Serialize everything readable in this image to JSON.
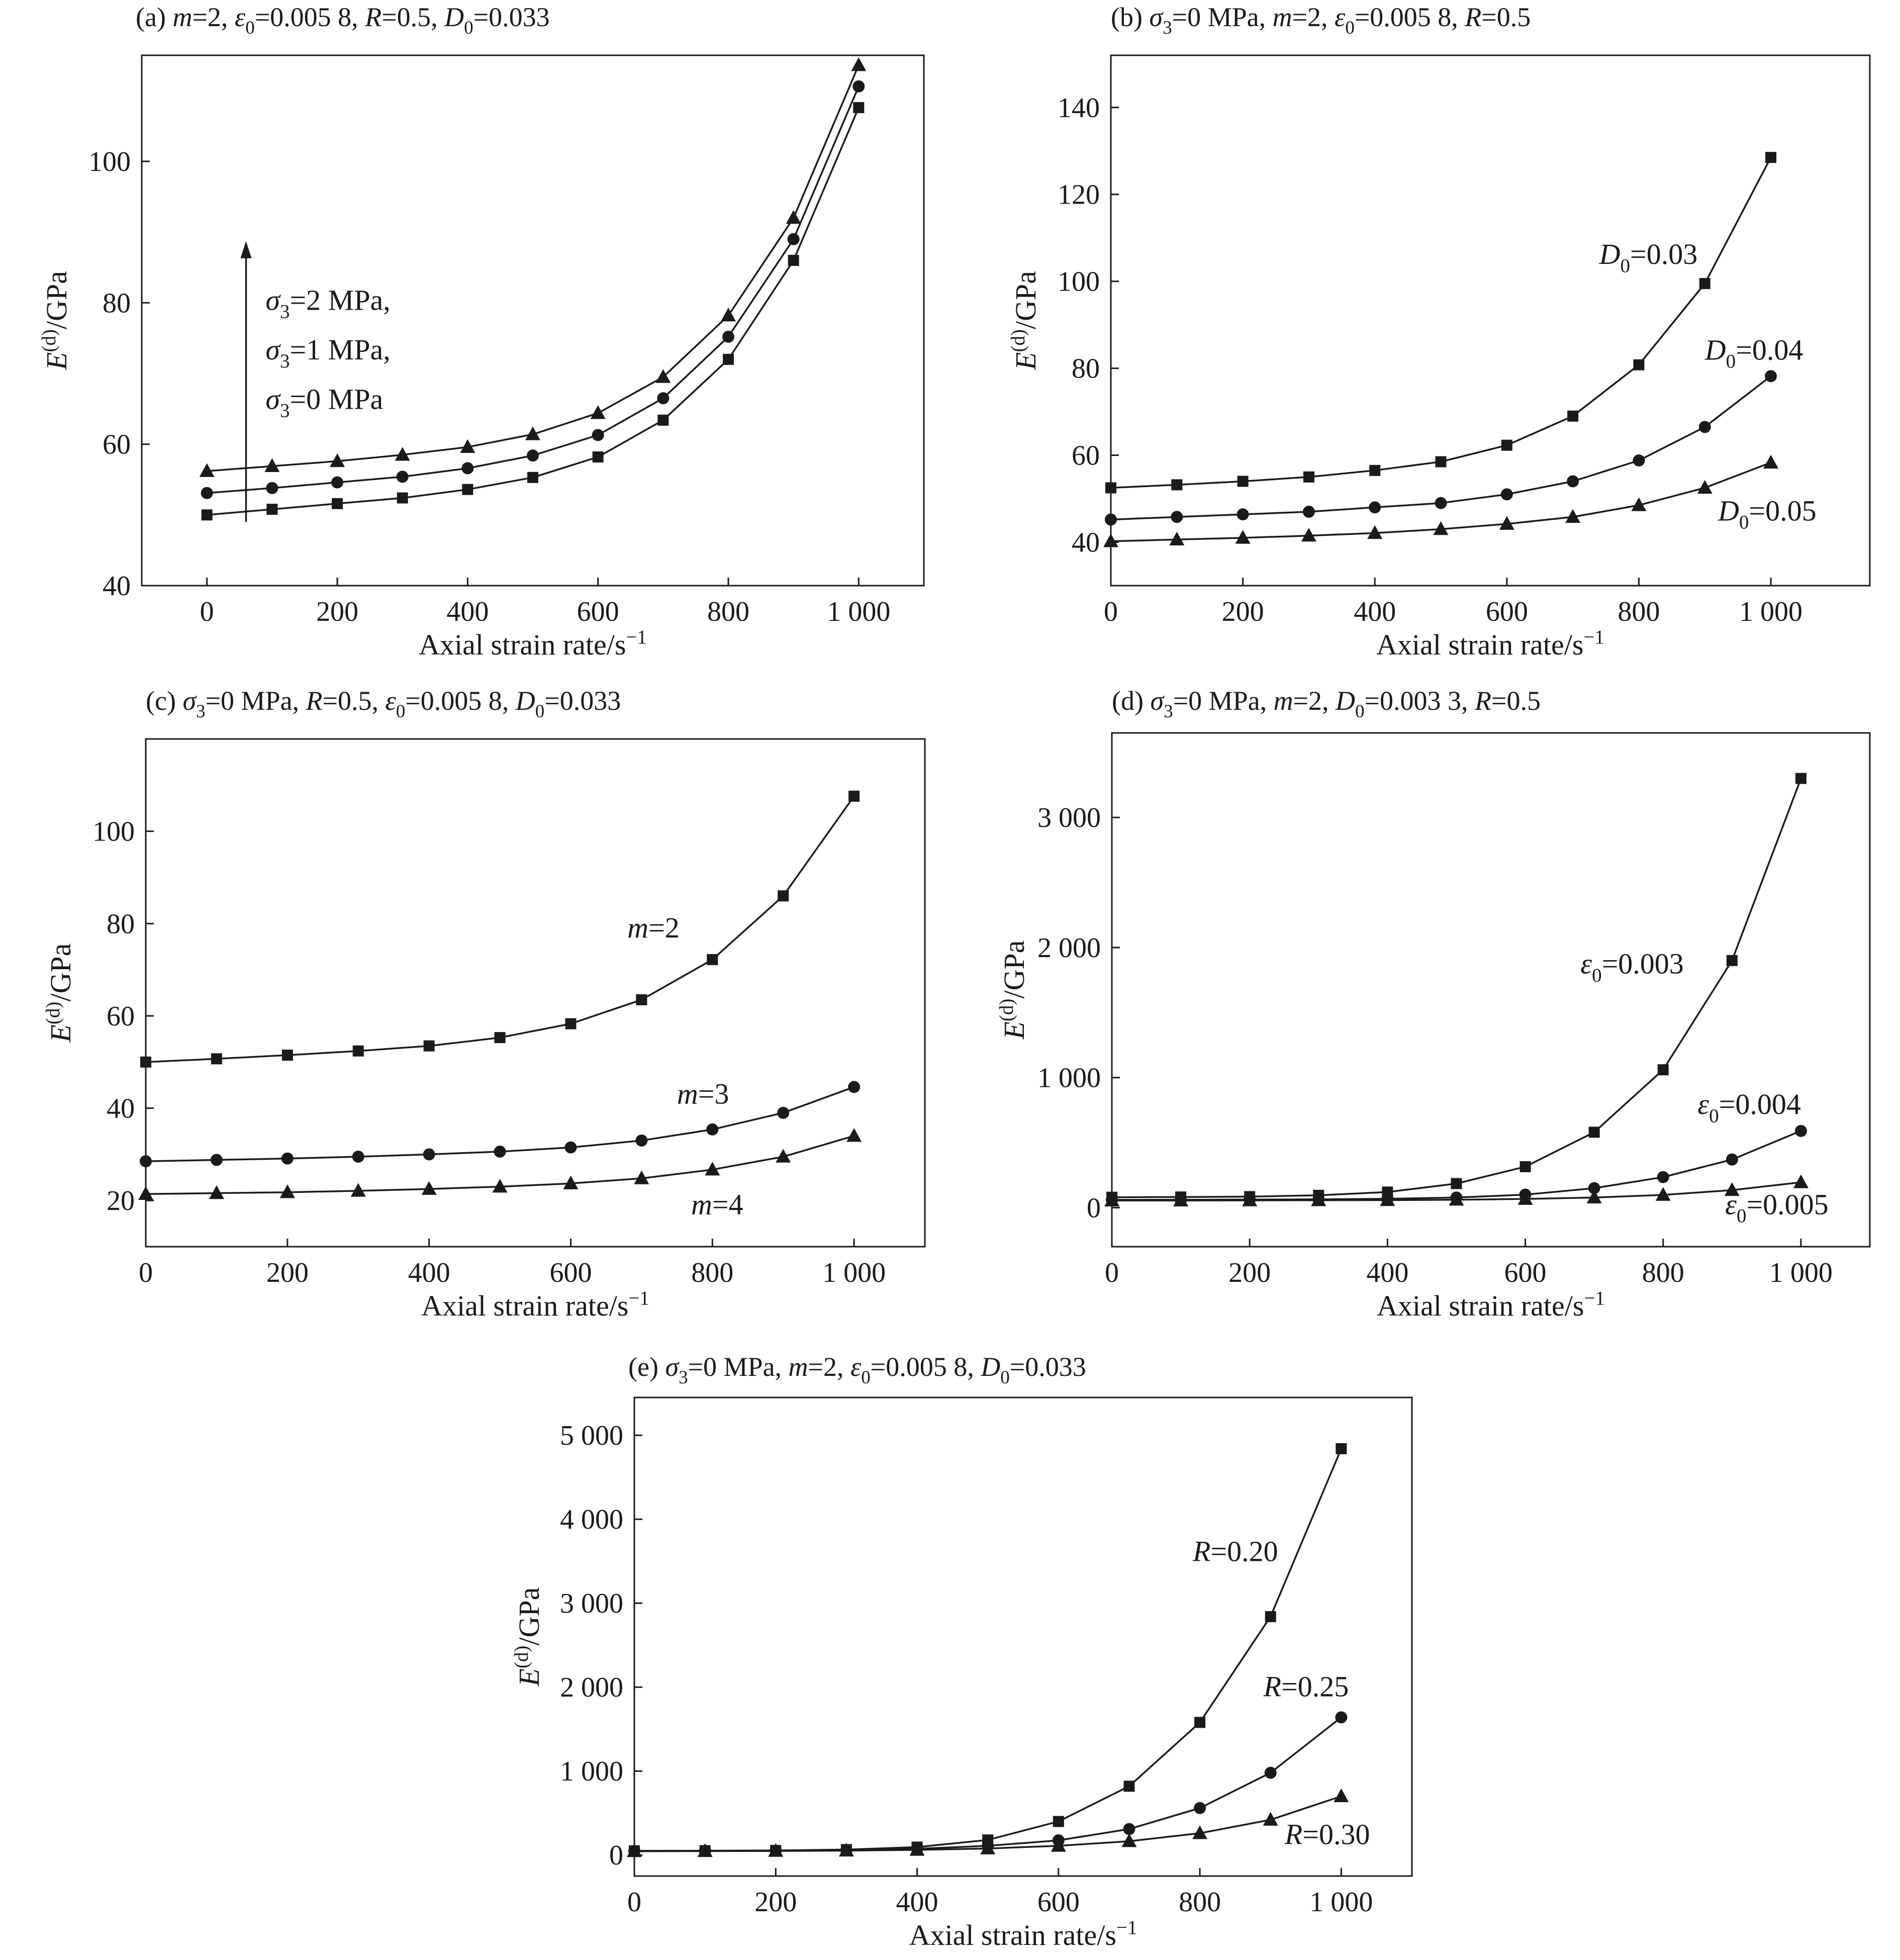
{
  "chart_data": [
    {
      "type": "line",
      "panel": "a",
      "title": "(a) m=2, ε0=0.005 8, R=0.5, D0=0.033",
      "xlabel": "Axial strain rate/s⁻¹",
      "ylabel": "E(d)/GPa",
      "xlim": [
        -100,
        1100
      ],
      "ylim": [
        40,
        115
      ],
      "xticks": [
        0,
        200,
        400,
        600,
        800,
        1000
      ],
      "xtick_labels": [
        "0",
        "200",
        "400",
        "600",
        "800",
        "1 000"
      ],
      "yticks": [
        40,
        60,
        80,
        100
      ],
      "ytick_labels": [
        "40",
        "60",
        "80",
        "100"
      ],
      "x": [
        0,
        100,
        200,
        300,
        400,
        500,
        600,
        700,
        800,
        900,
        1000
      ],
      "series": [
        {
          "marker": "square",
          "values": [
            50.0,
            50.8,
            51.6,
            52.4,
            53.6,
            55.3,
            58.2,
            63.4,
            72.0,
            86.0,
            107.6
          ]
        },
        {
          "marker": "circle",
          "values": [
            53.1,
            53.8,
            54.6,
            55.4,
            56.6,
            58.4,
            61.3,
            66.5,
            75.2,
            89.0,
            110.6
          ]
        },
        {
          "marker": "triangle",
          "values": [
            56.2,
            56.9,
            57.6,
            58.5,
            59.6,
            61.4,
            64.4,
            69.5,
            78.2,
            92.0,
            113.6
          ]
        }
      ],
      "annotations": [
        {
          "text": "σ3=2 MPa,",
          "x": 90,
          "y": 79
        },
        {
          "text": "σ3=1 MPa,",
          "x": 90,
          "y": 72
        },
        {
          "text": "σ3=0 MPa",
          "x": 90,
          "y": 65
        }
      ],
      "arrow": {
        "x": 60,
        "y_from": 49,
        "y_to": 88
      }
    },
    {
      "type": "line",
      "panel": "b",
      "title": "(b) σ3=0 MPa, m=2, ε0=0.005 8, R=0.5",
      "xlabel": "Axial strain rate/s⁻¹",
      "ylabel": "E(d)/GPa",
      "xlim": [
        0,
        1150
      ],
      "ylim": [
        30,
        152
      ],
      "xticks": [
        0,
        200,
        400,
        600,
        800,
        1000
      ],
      "xtick_labels": [
        "0",
        "200",
        "400",
        "600",
        "800",
        "1 000"
      ],
      "yticks": [
        40,
        60,
        80,
        100,
        120,
        140
      ],
      "ytick_labels": [
        "40",
        "60",
        "80",
        "100",
        "120",
        "140"
      ],
      "x": [
        0,
        100,
        200,
        300,
        400,
        500,
        600,
        700,
        800,
        900,
        1000
      ],
      "series": [
        {
          "name": "D0=0.03",
          "marker": "square",
          "values": [
            52.5,
            53.2,
            54.0,
            55.0,
            56.5,
            58.5,
            62.3,
            69.0,
            80.8,
            99.5,
            128.5
          ]
        },
        {
          "name": "D0=0.04",
          "marker": "circle",
          "values": [
            45.2,
            45.8,
            46.4,
            47.0,
            48.0,
            49.0,
            51.0,
            54.0,
            58.8,
            66.5,
            78.2
          ]
        },
        {
          "name": "D0=0.05",
          "marker": "triangle",
          "values": [
            40.2,
            40.6,
            41.0,
            41.5,
            42.1,
            43.0,
            44.2,
            45.8,
            48.5,
            52.5,
            58.3
          ]
        }
      ],
      "annotations": [
        {
          "text": "D0=0.03",
          "x": 740,
          "y": 104
        },
        {
          "text": "D0=0.04",
          "x": 900,
          "y": 82
        },
        {
          "text": "D0=0.05",
          "x": 920,
          "y": 45
        }
      ]
    },
    {
      "type": "line",
      "panel": "c",
      "title": "(c) σ3=0 MPa, R=0.5, ε0=0.005 8, D0=0.033",
      "xlabel": "Axial strain rate/s⁻¹",
      "ylabel": "E(d)/GPa",
      "xlim": [
        0,
        1100
      ],
      "ylim": [
        10,
        120
      ],
      "xticks": [
        0,
        200,
        400,
        600,
        800,
        1000
      ],
      "xtick_labels": [
        "0",
        "200",
        "400",
        "600",
        "800",
        "1 000"
      ],
      "yticks": [
        20,
        40,
        60,
        80,
        100
      ],
      "ytick_labels": [
        "20",
        "40",
        "60",
        "80",
        "100"
      ],
      "x": [
        0,
        100,
        200,
        300,
        400,
        500,
        600,
        700,
        800,
        900,
        1000
      ],
      "series": [
        {
          "name": "m=2",
          "marker": "square",
          "values": [
            50.0,
            50.7,
            51.5,
            52.4,
            53.5,
            55.3,
            58.3,
            63.5,
            72.2,
            86.0,
            107.6
          ]
        },
        {
          "name": "m=3",
          "marker": "circle",
          "values": [
            28.5,
            28.8,
            29.1,
            29.5,
            30.0,
            30.6,
            31.5,
            33.0,
            35.4,
            39.0,
            44.6
          ]
        },
        {
          "name": "m=4",
          "marker": "triangle",
          "values": [
            21.4,
            21.6,
            21.8,
            22.1,
            22.5,
            23.0,
            23.7,
            24.8,
            26.7,
            29.5,
            34.0
          ]
        }
      ],
      "annotations": [
        {
          "text": "m=2",
          "x": 680,
          "y": 77
        },
        {
          "text": "m=3",
          "x": 750,
          "y": 41
        },
        {
          "text": "m=4",
          "x": 770,
          "y": 17
        }
      ]
    },
    {
      "type": "line",
      "panel": "d",
      "title": "(d) σ3=0 MPa, m=2, D0=0.003 3, R=0.5",
      "xlabel": "Axial strain rate/s⁻¹",
      "ylabel": "E(d)/GPa",
      "xlim": [
        0,
        1100
      ],
      "ylim": [
        -300,
        3650
      ],
      "xticks": [
        0,
        200,
        400,
        600,
        800,
        1000
      ],
      "xtick_labels": [
        "0",
        "200",
        "400",
        "600",
        "800",
        "1 000"
      ],
      "yticks": [
        0,
        1000,
        2000,
        3000
      ],
      "ytick_labels": [
        "0",
        "1 000",
        "2 000",
        "3 000"
      ],
      "x": [
        0,
        100,
        200,
        300,
        400,
        500,
        600,
        700,
        800,
        900,
        1000
      ],
      "series": [
        {
          "name": "ε0=0.003",
          "marker": "square",
          "values": [
            80,
            82,
            85,
            95,
            120,
            185,
            315,
            580,
            1060,
            1900,
            3300
          ]
        },
        {
          "name": "ε0=0.004",
          "marker": "circle",
          "values": [
            60,
            61,
            62,
            64,
            68,
            78,
            100,
            150,
            235,
            370,
            590
          ]
        },
        {
          "name": "ε0=0.005",
          "marker": "triangle",
          "values": [
            55,
            55,
            56,
            57,
            58,
            61,
            67,
            78,
            98,
            135,
            195
          ]
        }
      ],
      "annotations": [
        {
          "text": "ε0=0.003",
          "x": 680,
          "y": 1800
        },
        {
          "text": "ε0=0.004",
          "x": 850,
          "y": 720
        },
        {
          "text": "ε0=0.005",
          "x": 890,
          "y": -50
        }
      ]
    },
    {
      "type": "line",
      "panel": "e",
      "title": "(e) σ3=0 MPa, m=2, ε0=0.005 8, D0=0.033",
      "xlabel": "Axial strain rate/s⁻¹",
      "ylabel": "E(d)/GPa",
      "xlim": [
        0,
        1100
      ],
      "ylim": [
        -250,
        5450
      ],
      "xticks": [
        0,
        200,
        400,
        600,
        800,
        1000
      ],
      "xtick_labels": [
        "0",
        "200",
        "400",
        "600",
        "800",
        "1 000"
      ],
      "yticks": [
        0,
        1000,
        2000,
        3000,
        4000,
        5000
      ],
      "ytick_labels": [
        "0",
        "1 000",
        "2 000",
        "3 000",
        "4 000",
        "5 000"
      ],
      "x": [
        0,
        100,
        200,
        300,
        400,
        500,
        600,
        700,
        800,
        900,
        1000
      ],
      "series": [
        {
          "name": "R=0.20",
          "marker": "square",
          "values": [
            50,
            52,
            55,
            65,
            95,
            180,
            400,
            820,
            1580,
            2840,
            4840
          ]
        },
        {
          "name": "R=0.25",
          "marker": "circle",
          "values": [
            48,
            50,
            52,
            58,
            75,
            110,
            175,
            310,
            560,
            980,
            1640
          ]
        },
        {
          "name": "R=0.30",
          "marker": "triangle",
          "values": [
            46,
            47,
            49,
            53,
            62,
            78,
            110,
            165,
            260,
            420,
            700
          ]
        }
      ],
      "annotations": [
        {
          "text": "R=0.20",
          "x": 790,
          "y": 3500
        },
        {
          "text": "R=0.25",
          "x": 890,
          "y": 1890
        },
        {
          "text": "R=0.30",
          "x": 920,
          "y": 130
        }
      ]
    }
  ]
}
